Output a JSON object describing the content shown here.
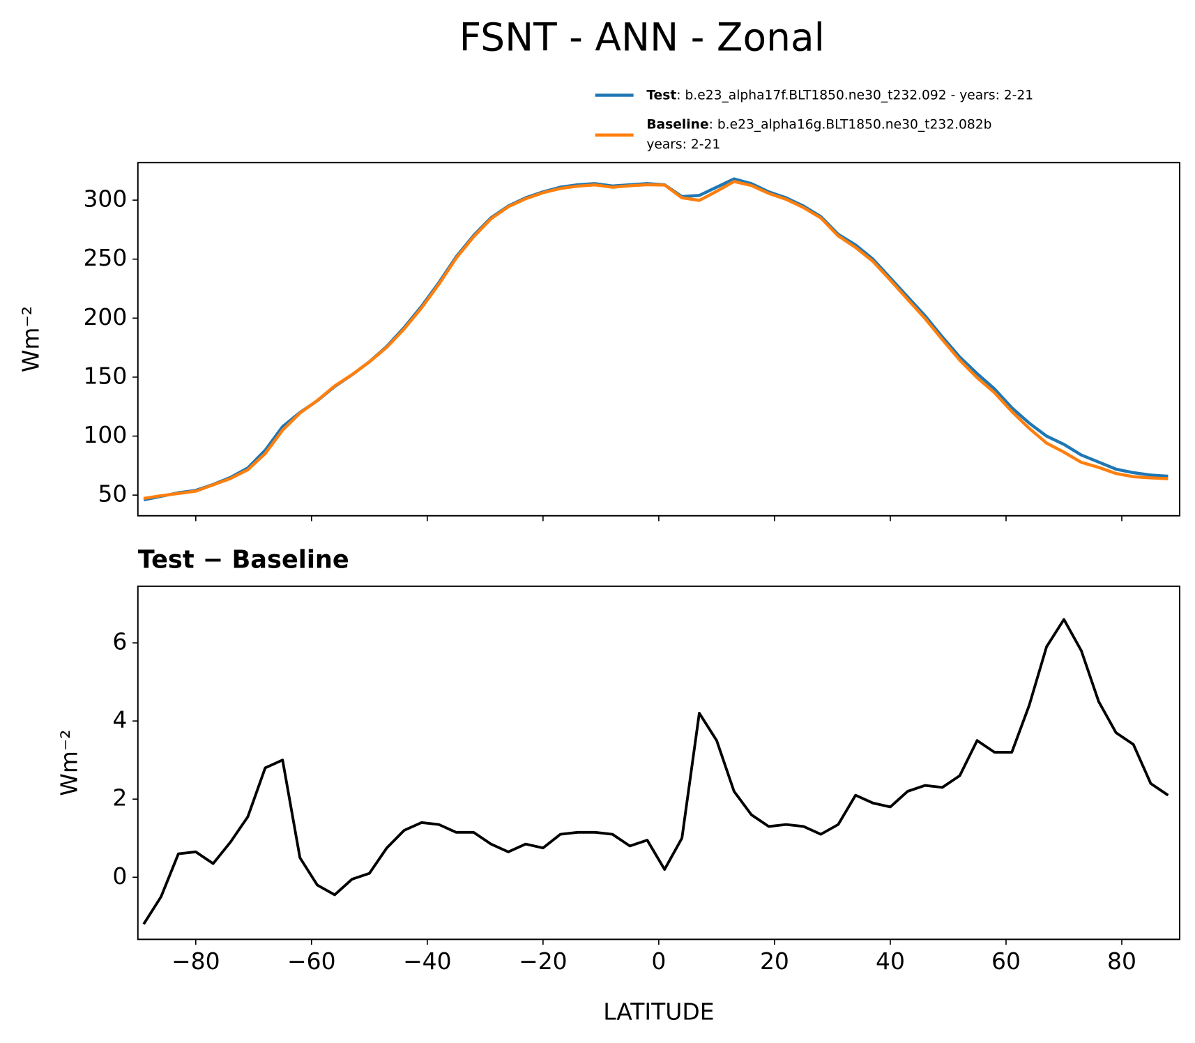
{
  "chart_data": [
    {
      "type": "line",
      "title": "FSNT - ANN - Zonal",
      "ylabel": "Wm⁻²",
      "x": [
        -89,
        -86,
        -83,
        -80,
        -77,
        -74,
        -71,
        -68,
        -65,
        -62,
        -59,
        -56,
        -53,
        -50,
        -47,
        -44,
        -41,
        -38,
        -35,
        -32,
        -29,
        -26,
        -23,
        -20,
        -17,
        -14,
        -11,
        -8,
        -5,
        -2,
        1,
        4,
        7,
        10,
        13,
        16,
        19,
        22,
        25,
        28,
        31,
        34,
        37,
        40,
        43,
        46,
        49,
        52,
        55,
        58,
        61,
        64,
        67,
        70,
        73,
        76,
        79,
        82,
        85,
        88
      ],
      "xlim": [
        -90,
        90
      ],
      "ylim": [
        32.5,
        331.8
      ],
      "yticks": [
        50,
        100,
        150,
        200,
        250,
        300
      ],
      "series": [
        {
          "name": "Test",
          "label_lines": [
            ": b.e23_alpha17f.BLT1850.ne30_t232.092 - years: 2-21"
          ],
          "color": "#1f77b4",
          "values": [
            46,
            49,
            52,
            54,
            59,
            65,
            73,
            88,
            108,
            120,
            130,
            142,
            152,
            163,
            176,
            192,
            210,
            230,
            252,
            270,
            285,
            295,
            302,
            307,
            311,
            313,
            314,
            312,
            313,
            314,
            313,
            303,
            304,
            311,
            318,
            314,
            307,
            302,
            295,
            286,
            271,
            262,
            250,
            234,
            218,
            202,
            184,
            167,
            153,
            140,
            124,
            111,
            100,
            93,
            84,
            78,
            72,
            69,
            67,
            66
          ]
        },
        {
          "name": "Baseline",
          "label_lines": [
            ": b.e23_alpha16g.BLT1850.ne30_t232.082b",
            "years: 2-21"
          ],
          "color": "#ff7f0e",
          "values": [
            47.2,
            49.5,
            51.4,
            53.4,
            58.7,
            64.1,
            71.5,
            85.2,
            105,
            119.5,
            130.2,
            142.5,
            152.1,
            162.9,
            175.3,
            190.8,
            208.6,
            228.7,
            250.9,
            268.9,
            284.2,
            294.4,
            301.2,
            306.3,
            309.9,
            311.9,
            312.9,
            310.9,
            312.2,
            313.1,
            312.8,
            302,
            299.8,
            307.5,
            315.8,
            312.4,
            305.7,
            300.7,
            293.7,
            284.9,
            269.7,
            259.9,
            248.1,
            232.2,
            215.8,
            199.7,
            181.7,
            164.4,
            149.5,
            136.8,
            120.8,
            106.6,
            94.1,
            86.4,
            77.8,
            73.5,
            68.3,
            65.6,
            64.6,
            63.9
          ]
        }
      ]
    },
    {
      "type": "line",
      "title": "Test − Baseline",
      "ylabel": "Wm⁻²",
      "xlabel": "LATITUDE",
      "x": [
        -89,
        -86,
        -83,
        -80,
        -77,
        -74,
        -71,
        -68,
        -65,
        -62,
        -59,
        -56,
        -53,
        -50,
        -47,
        -44,
        -41,
        -38,
        -35,
        -32,
        -29,
        -26,
        -23,
        -20,
        -17,
        -14,
        -11,
        -8,
        -5,
        -2,
        1,
        4,
        7,
        10,
        13,
        16,
        19,
        22,
        25,
        28,
        31,
        34,
        37,
        40,
        43,
        46,
        49,
        52,
        55,
        58,
        61,
        64,
        67,
        70,
        73,
        76,
        79,
        82,
        85,
        88
      ],
      "xlim": [
        -90,
        90
      ],
      "ylim": [
        -1.59,
        7.45
      ],
      "xticks": [
        {
          "value": -80,
          "label": "−80"
        },
        {
          "value": -60,
          "label": "−60"
        },
        {
          "value": -40,
          "label": "−40"
        },
        {
          "value": -20,
          "label": "−20"
        },
        0,
        20,
        40,
        60,
        80
      ],
      "yticks": [
        0,
        2,
        4,
        6
      ],
      "series": [
        {
          "color": "#000000",
          "values": [
            -1.2,
            -0.5,
            0.6,
            0.65,
            0.35,
            0.9,
            1.55,
            2.8,
            3.0,
            0.5,
            -0.2,
            -0.45,
            -0.05,
            0.1,
            0.75,
            1.2,
            1.4,
            1.35,
            1.15,
            1.15,
            0.85,
            0.65,
            0.85,
            0.75,
            1.1,
            1.15,
            1.15,
            1.1,
            0.8,
            0.95,
            0.2,
            1.0,
            4.2,
            3.5,
            2.2,
            1.6,
            1.3,
            1.35,
            1.3,
            1.1,
            1.35,
            2.1,
            1.9,
            1.8,
            2.2,
            2.35,
            2.3,
            2.6,
            3.5,
            3.2,
            3.2,
            4.4,
            5.9,
            6.6,
            5.8,
            4.5,
            3.7,
            3.4,
            2.4,
            2.1
          ]
        }
      ]
    }
  ]
}
